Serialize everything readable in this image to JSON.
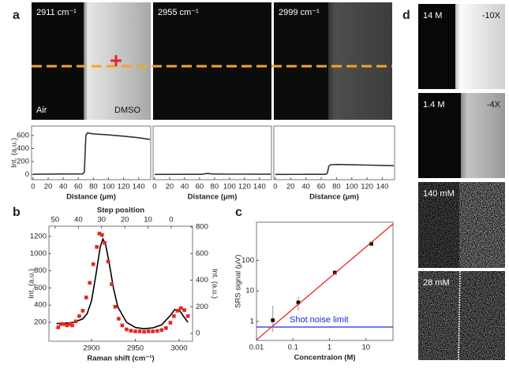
{
  "panel_labels": [
    "a",
    "b",
    "c",
    "d"
  ],
  "images_a": [
    {
      "label": "2911 cm⁻¹"
    },
    {
      "label": "2955 cm⁻¹"
    },
    {
      "label": "2999 cm⁻¹"
    }
  ],
  "image_a_annotations": [
    "Air",
    "DMSO"
  ],
  "images_d": [
    {
      "label": "14 M",
      "factor": "-10X"
    },
    {
      "label": "1.4 M",
      "factor": "-4X"
    },
    {
      "label": "140 mM"
    },
    {
      "label": "28 mM"
    }
  ],
  "chart_data": [
    {
      "type": "line",
      "xlabel": "Distance (μm)",
      "ylabel": "Int. (a.u.)",
      "xlim": [
        -2,
        156
      ],
      "xticks": [
        0,
        20,
        40,
        60,
        80,
        100,
        120,
        140
      ],
      "ylim": [
        -79,
        745
      ],
      "yticks": [
        0,
        200,
        400,
        600
      ],
      "series": [
        {
          "color": "#333333",
          "x": [
            0,
            40,
            66,
            68,
            70,
            72,
            80,
            100,
            120,
            140,
            155
          ],
          "values": [
            5,
            8,
            10,
            40,
            600,
            640,
            625,
            610,
            590,
            565,
            540
          ]
        }
      ]
    },
    {
      "type": "line",
      "xlabel": "Distance (μm)",
      "xlim": [
        -2,
        156
      ],
      "xticks": [
        0,
        20,
        40,
        60,
        80,
        100,
        120,
        140
      ],
      "ylim": [
        -79,
        745
      ],
      "series": [
        {
          "color": "#333333",
          "x": [
            0,
            40,
            64,
            68,
            72,
            76,
            100,
            120,
            140,
            155
          ],
          "values": [
            2,
            3,
            4,
            14,
            16,
            8,
            6,
            6,
            5,
            5
          ]
        }
      ]
    },
    {
      "type": "line",
      "xlabel": "Distance (μm)",
      "xlim": [
        -2,
        156
      ],
      "xticks": [
        0,
        20,
        40,
        60,
        80,
        100,
        120,
        140
      ],
      "ylim": [
        -79,
        745
      ],
      "series": [
        {
          "color": "#333333",
          "x": [
            0,
            40,
            66,
            68,
            70,
            72,
            80,
            100,
            120,
            140,
            155
          ],
          "values": [
            2,
            3,
            4,
            20,
            130,
            150,
            155,
            150,
            145,
            140,
            135
          ]
        }
      ]
    },
    {
      "type": "line",
      "xlabel": "Raman shift (cm⁻¹)",
      "ylabel": "Int. (a.u.)",
      "x2label": "Step position",
      "y2label": "Int. (a.u.)",
      "xlim": [
        2851.4,
        3015.3
      ],
      "xticks": [
        2900,
        2950,
        3000
      ],
      "x2lim": [
        52.7,
        -9.2
      ],
      "x2ticks": [
        50,
        40,
        30,
        20,
        10,
        0
      ],
      "ylim": [
        -20,
        1319
      ],
      "yticks": [
        200,
        400,
        600,
        800,
        1000,
        1200
      ],
      "y2lim": [
        -59,
        806
      ],
      "y2ticks": [
        0,
        200,
        400,
        600,
        800
      ],
      "series": [
        {
          "color": "#000000",
          "style": "line",
          "x": [
            2860,
            2870,
            2880,
            2890,
            2895,
            2900,
            2905,
            2910,
            2913,
            2916,
            2920,
            2925,
            2930,
            2940,
            2950,
            2960,
            2970,
            2980,
            2990,
            2995,
            3000,
            3005,
            3010
          ],
          "values": [
            185,
            190,
            200,
            240,
            300,
            450,
            750,
            1080,
            1170,
            1110,
            900,
            600,
            380,
            200,
            140,
            125,
            135,
            170,
            280,
            350,
            345,
            270,
            200
          ]
        },
        {
          "color": "#e8261e",
          "style": "markers",
          "axis": "y2",
          "x": [
            2862,
            2865,
            2868,
            2872,
            2875,
            2878,
            2882,
            2886,
            2890,
            2894,
            2898,
            2902,
            2906,
            2909,
            2912,
            2915,
            2919,
            2923,
            2927,
            2931,
            2935,
            2940,
            2945,
            2950,
            2955,
            2960,
            2965,
            2970,
            2975,
            2980,
            2985,
            2990,
            2994,
            2998,
            3002,
            3006,
            3010
          ],
          "values": [
            45,
            70,
            70,
            60,
            70,
            60,
            90,
            130,
            170,
            270,
            380,
            520,
            650,
            750,
            740,
            680,
            540,
            370,
            200,
            110,
            60,
            30,
            20,
            15,
            15,
            12,
            15,
            15,
            18,
            25,
            40,
            80,
            130,
            170,
            190,
            175,
            130
          ]
        }
      ]
    },
    {
      "type": "scatter",
      "xlabel": "Concentraion (M)",
      "ylabel": "SRS signal (μV)",
      "log_x": true,
      "log_y": true,
      "xlim": [
        0.01,
        55
      ],
      "xticks": [
        0.01,
        0.1,
        1,
        10
      ],
      "ylim": [
        0.24,
        1780
      ],
      "yticks": [
        1,
        10,
        100
      ],
      "series": [
        {
          "color": "#000000",
          "style": "markers",
          "x": [
            0.028,
            0.14,
            1.4,
            14
          ],
          "values": [
            1.1,
            4.2,
            40,
            350
          ],
          "error_lower": [
            0.65,
            2,
            null,
            null
          ],
          "error_upper": [
            2.2,
            2.1,
            null,
            null
          ]
        },
        {
          "color": "#e8261e",
          "style": "line",
          "x": [
            0.01,
            55
          ],
          "values": [
            0.25,
            1560
          ]
        }
      ],
      "hline": {
        "value": 0.66,
        "label": "Shot noise limit",
        "color": "#1f2ad6"
      }
    }
  ]
}
